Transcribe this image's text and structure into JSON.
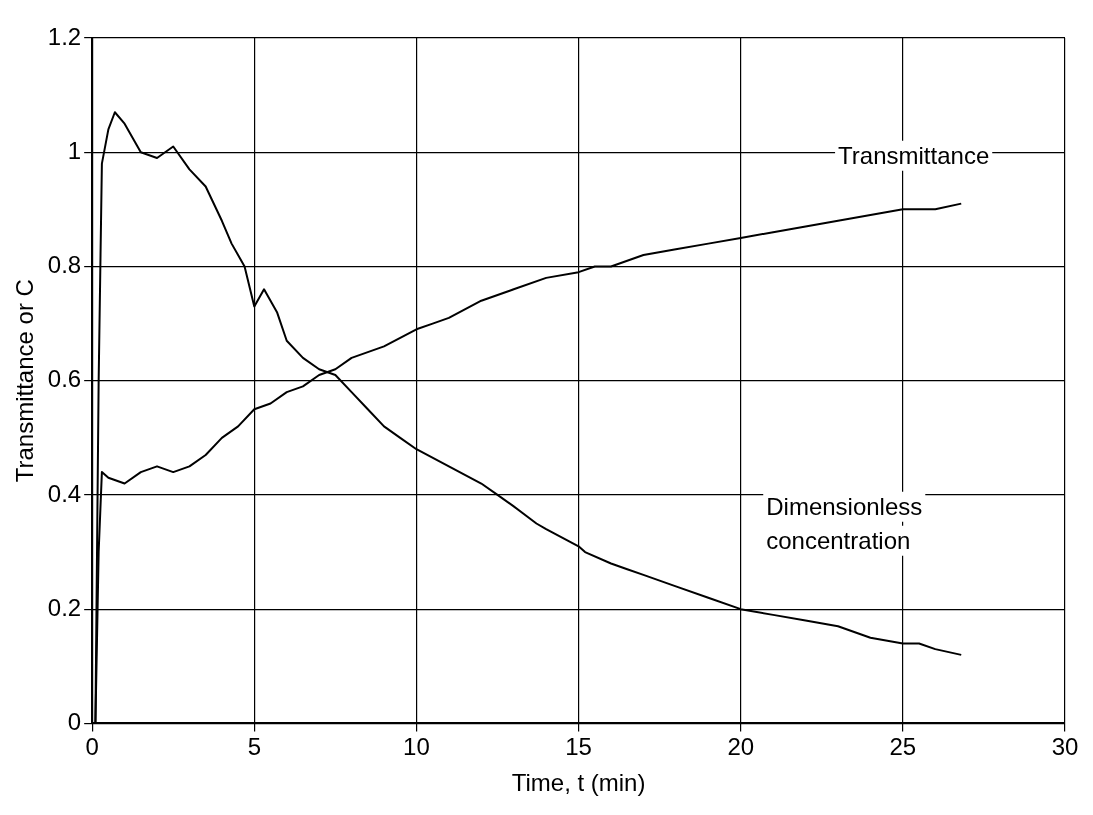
{
  "chart_data": {
    "type": "line",
    "xlabel": "Time, t (min)",
    "ylabel": "Transmittance or C",
    "xlim": [
      0,
      30
    ],
    "xticks": [
      0,
      5,
      10,
      15,
      20,
      25,
      30
    ],
    "ylim": [
      0,
      1.2
    ],
    "yticks": [
      0,
      0.2,
      0.4,
      0.6,
      0.8,
      1,
      1.2
    ],
    "grid": true,
    "legend": false,
    "marker": "none",
    "line_style": "solid",
    "series": [
      {
        "name": "Transmittance",
        "color": "#000000",
        "x": [
          0.1,
          0.2,
          0.3,
          0.5,
          1,
          1.5,
          2,
          2.5,
          3,
          3.5,
          4,
          4.5,
          5,
          5.5,
          6,
          6.5,
          7,
          7.5,
          8,
          9,
          10,
          10.5,
          11,
          12,
          13,
          14,
          15,
          15.5,
          16,
          17,
          18,
          19,
          20,
          21,
          22,
          23,
          24,
          25,
          26,
          26.8
        ],
        "values": [
          0,
          0.3,
          0.44,
          0.43,
          0.42,
          0.44,
          0.45,
          0.44,
          0.45,
          0.47,
          0.5,
          0.52,
          0.55,
          0.56,
          0.58,
          0.59,
          0.61,
          0.62,
          0.64,
          0.66,
          0.69,
          0.7,
          0.71,
          0.74,
          0.76,
          0.78,
          0.79,
          0.8,
          0.8,
          0.82,
          0.83,
          0.84,
          0.85,
          0.86,
          0.87,
          0.88,
          0.89,
          0.9,
          0.9,
          0.91
        ]
      },
      {
        "name": "Dimensionless concentration",
        "color": "#000000",
        "x": [
          0.1,
          0.2,
          0.3,
          0.5,
          0.7,
          1,
          1.5,
          2,
          2.5,
          3,
          3.5,
          4,
          4.3,
          4.7,
          5,
          5.3,
          5.7,
          6,
          6.5,
          7,
          7.5,
          8,
          8.5,
          9,
          9.5,
          10,
          11,
          12,
          12.5,
          13,
          13.7,
          14,
          15,
          15.2,
          16,
          16.5,
          17,
          18,
          19,
          20,
          21,
          22,
          23,
          24,
          25,
          25.5,
          26,
          26.8
        ],
        "values": [
          0,
          0.6,
          0.98,
          1.04,
          1.07,
          1.05,
          1.0,
          0.99,
          1.01,
          0.97,
          0.94,
          0.88,
          0.84,
          0.8,
          0.73,
          0.76,
          0.72,
          0.67,
          0.64,
          0.62,
          0.61,
          0.58,
          0.55,
          0.52,
          0.5,
          0.48,
          0.45,
          0.42,
          0.4,
          0.38,
          0.35,
          0.34,
          0.31,
          0.3,
          0.28,
          0.27,
          0.26,
          0.24,
          0.22,
          0.2,
          0.19,
          0.18,
          0.17,
          0.15,
          0.14,
          0.14,
          0.13,
          0.12
        ]
      }
    ]
  }
}
